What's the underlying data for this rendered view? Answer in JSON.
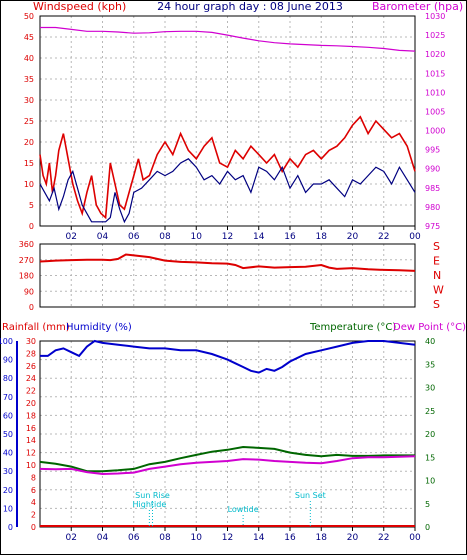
{
  "header": {
    "left": "Windspeed (kph)",
    "center": "24 hour graph day : 08 June 2013",
    "right": "Barometer (hpa)"
  },
  "x_ticks": [
    "02",
    "04",
    "06",
    "08",
    "10",
    "12",
    "14",
    "16",
    "18",
    "20",
    "22",
    "00"
  ],
  "colors": {
    "wind": "#dd0000",
    "gust": "#dd0000",
    "avg_wind": "#000080",
    "barometer": "#d000d0",
    "direction": "#dd0000",
    "humidity": "#0000cc",
    "temperature": "#006600",
    "dew_point": "#d000d0",
    "rain": "#dd0000",
    "tide": "#00bbcc",
    "axis": "#000000",
    "grid": "#b8b8b8"
  },
  "chart_data": [
    {
      "type": "line",
      "panel": "wind-barometer",
      "ylabel_left": "Windspeed (kph)",
      "ylabel_right": "Barometer (hpa)",
      "ylim_left": [
        0,
        50
      ],
      "ylim_right": [
        975,
        1030
      ],
      "yticks_left": [
        "0",
        "5",
        "10",
        "15",
        "20",
        "25",
        "30",
        "35",
        "40",
        "45",
        "50"
      ],
      "yticks_right": [
        "975",
        "980",
        "985",
        "990",
        "995",
        "1000",
        "1005",
        "1010",
        "1015",
        "1020",
        "1025",
        "1030"
      ],
      "grid": true,
      "series": [
        {
          "axis": "left",
          "x": [
            0,
            0.2,
            0.4,
            0.6,
            0.8,
            1,
            1.2,
            1.5,
            1.8,
            2.1,
            2.4,
            2.7,
            3,
            3.3,
            3.6,
            3.9,
            4.2,
            4.5,
            4.8,
            5.1,
            5.4,
            5.7,
            6,
            6.3,
            6.6,
            7,
            7.5,
            8,
            8.5,
            9,
            9.5,
            10,
            10.5,
            11,
            11.5,
            12,
            12.5,
            13,
            13.5,
            14,
            14.5,
            15,
            15.5,
            16,
            16.5,
            17,
            17.5,
            18,
            18.5,
            19,
            19.5,
            20,
            20.5,
            21,
            21.5,
            22,
            22.5,
            23,
            23.5,
            24
          ],
          "values": [
            17,
            12,
            10,
            15,
            8,
            12,
            18,
            22,
            16,
            10,
            6,
            3,
            8,
            12,
            5,
            3,
            2,
            15,
            10,
            5,
            4,
            8,
            12,
            16,
            11,
            12,
            17,
            20,
            17,
            22,
            18,
            16,
            19,
            21,
            15,
            14,
            18,
            16,
            19,
            17,
            15,
            17,
            13,
            16,
            14,
            17,
            18,
            16,
            18,
            19,
            21,
            24,
            26,
            22,
            25,
            23,
            21,
            22,
            19,
            13
          ]
        },
        {
          "axis": "left",
          "x": [
            0,
            0.3,
            0.6,
            0.9,
            1.2,
            1.5,
            1.8,
            2.1,
            2.4,
            2.7,
            3,
            3.3,
            3.6,
            3.9,
            4.2,
            4.5,
            4.8,
            5.1,
            5.4,
            5.7,
            6,
            6.5,
            7,
            7.5,
            8,
            8.5,
            9,
            9.5,
            10,
            10.5,
            11,
            11.5,
            12,
            12.5,
            13,
            13.5,
            14,
            14.5,
            15,
            15.5,
            16,
            16.5,
            17,
            17.5,
            18,
            18.5,
            19,
            19.5,
            20,
            20.5,
            21,
            21.5,
            22,
            22.5,
            23,
            23.5,
            24
          ],
          "values": [
            10,
            8,
            6,
            9,
            4,
            7,
            11,
            13,
            9,
            5,
            3,
            1,
            1,
            1,
            1,
            2,
            8,
            4,
            1,
            3,
            8,
            9,
            11,
            13,
            12,
            13,
            15,
            16,
            14,
            11,
            12,
            10,
            13,
            11,
            12,
            8,
            14,
            13,
            11,
            14,
            9,
            12,
            8,
            10,
            10,
            11,
            9,
            7,
            11,
            10,
            12,
            14,
            13,
            10,
            14,
            11,
            8
          ]
        },
        {
          "axis": "right",
          "x": [
            0,
            1,
            2,
            3,
            4,
            5,
            6,
            7,
            8,
            9,
            10,
            11,
            12,
            13,
            14,
            15,
            16,
            17,
            18,
            19,
            20,
            21,
            22,
            23,
            24
          ],
          "values": [
            1027,
            1027,
            1026.5,
            1026,
            1026,
            1025.8,
            1025.5,
            1025.6,
            1025.9,
            1026,
            1026,
            1025.7,
            1025,
            1024.2,
            1023.5,
            1023,
            1022.7,
            1022.5,
            1022.3,
            1022.2,
            1022,
            1021.8,
            1021.5,
            1021,
            1020.8
          ]
        }
      ]
    },
    {
      "type": "scatter",
      "panel": "wind-direction",
      "ylim": [
        0,
        360
      ],
      "yticks": [
        "0",
        "90",
        "180",
        "270",
        "360"
      ],
      "compass_labels": [
        "S",
        "E",
        "N",
        "W",
        "S"
      ],
      "x": [
        0,
        0.5,
        1,
        2,
        3,
        4,
        4.5,
        5,
        5.5,
        6,
        7,
        8,
        9,
        10,
        11,
        12,
        12.5,
        13,
        14,
        15,
        16,
        17,
        18,
        18.5,
        19,
        20,
        21,
        22,
        23,
        24
      ],
      "values": [
        260,
        262,
        265,
        268,
        270,
        270,
        268,
        275,
        300,
        295,
        285,
        265,
        258,
        255,
        250,
        248,
        240,
        222,
        232,
        225,
        228,
        230,
        240,
        225,
        218,
        222,
        216,
        212,
        210,
        206
      ]
    },
    {
      "type": "line",
      "panel": "rain-humidity-temperature",
      "ylabel_left_rain": "Rainfall (mm)",
      "ylabel_left_humidity": "Humidity (%)",
      "ylabel_right_temp": "Temperature (°C)",
      "ylabel_right_dew": "Dew Point (°C)",
      "ylim_humidity": [
        0,
        100
      ],
      "ylim_rain": [
        0,
        30
      ],
      "ylim_temp": [
        0,
        40
      ],
      "yticks_humidity": [
        "0",
        "10",
        "20",
        "30",
        "40",
        "50",
        "60",
        "70",
        "80",
        "90",
        "100"
      ],
      "yticks_rain": [
        "0",
        "2",
        "4",
        "6",
        "8",
        "10",
        "12",
        "14",
        "16",
        "18",
        "20",
        "22",
        "24",
        "26",
        "28",
        "30"
      ],
      "yticks_temp": [
        "0",
        "5",
        "10",
        "15",
        "20",
        "25",
        "30",
        "35",
        "40"
      ],
      "grid": true,
      "series": [
        {
          "axis": "humidity",
          "x": [
            0,
            0.5,
            1,
            1.5,
            2,
            2.5,
            3,
            3.5,
            4,
            5,
            6,
            7,
            8,
            9,
            10,
            11,
            12,
            12.5,
            13,
            13.5,
            14,
            14.5,
            15,
            15.5,
            16,
            17,
            18,
            19,
            20,
            21,
            22,
            23,
            24
          ],
          "values": [
            92,
            92,
            95,
            96,
            94,
            92,
            97,
            100,
            99,
            98,
            97,
            96,
            96,
            95,
            95,
            93,
            90,
            88,
            86,
            84,
            83,
            85,
            84,
            86,
            89,
            93,
            95,
            97,
            99,
            100,
            100,
            99,
            98
          ]
        },
        {
          "axis": "temp",
          "x": [
            0,
            1,
            2,
            3,
            4,
            5,
            6,
            7,
            8,
            9,
            10,
            11,
            12,
            13,
            14,
            15,
            16,
            17,
            18,
            19,
            20,
            21,
            22,
            23,
            24
          ],
          "values": [
            14,
            13.6,
            13,
            12,
            12,
            12.2,
            12.5,
            13.5,
            14,
            14.8,
            15.5,
            16.2,
            16.6,
            17.2,
            17,
            16.8,
            16,
            15.5,
            15.2,
            15.5,
            15.3,
            15.3,
            15.4,
            15.4,
            15.4
          ]
        },
        {
          "axis": "temp",
          "x": [
            0,
            1,
            2,
            3,
            4,
            5,
            6,
            7,
            8,
            9,
            10,
            11,
            12,
            13,
            14,
            15,
            16,
            17,
            18,
            19,
            20,
            21,
            22,
            23,
            24
          ],
          "values": [
            12.5,
            12.4,
            12.5,
            11.8,
            11.4,
            11.5,
            11.7,
            12.5,
            13,
            13.5,
            13.8,
            14,
            14.2,
            14.6,
            14.5,
            14.2,
            14,
            13.8,
            13.7,
            14.2,
            14.8,
            15,
            15,
            15.1,
            15.2
          ]
        }
      ],
      "annotations": [
        {
          "text": "Sun Rise",
          "x": 7.2,
          "level": 3
        },
        {
          "text": "Hightide",
          "x": 7.0,
          "level": 2
        },
        {
          "text": "Lowtide",
          "x": 13.0,
          "level": 1
        },
        {
          "text": "Sun Set",
          "x": 17.3,
          "level": 3
        }
      ],
      "rain_values": [
        0
      ]
    }
  ]
}
